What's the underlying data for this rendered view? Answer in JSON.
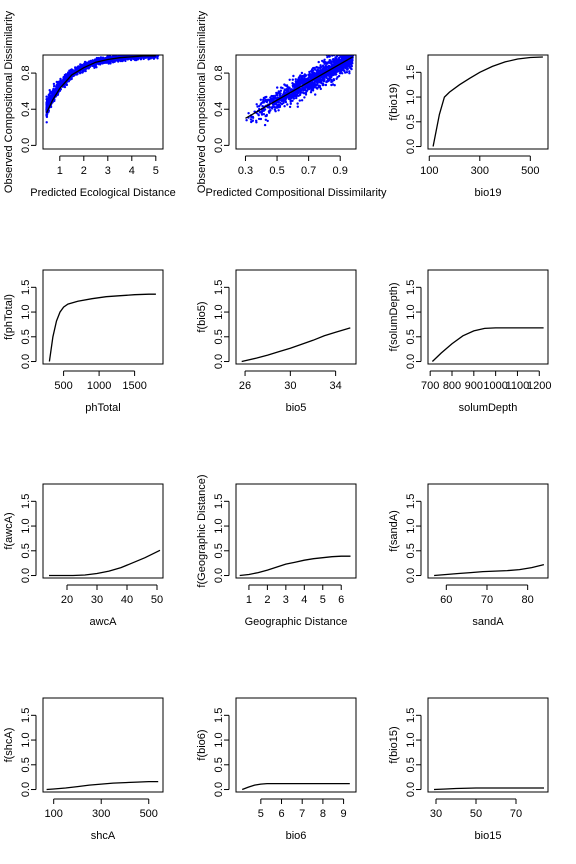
{
  "chart_data": [
    {
      "type": "scatter",
      "xlabel": "Predicted Ecological Distance",
      "ylabel": "Observed Compositional Dissimilarity",
      "xlim": [
        0.3,
        5.3
      ],
      "ylim": [
        -0.04,
        1.0
      ],
      "xticks": [
        1,
        2,
        3,
        4,
        5
      ],
      "xtick_labels": [
        "1",
        "2",
        "3",
        "4",
        "5"
      ],
      "yticks": [
        0.0,
        0.4,
        0.8
      ],
      "ytick_labels": [
        "0.0",
        "0.4",
        "0.8"
      ],
      "point_color": "#0000ff",
      "scatter_model": "exp",
      "scatter_x_range": [
        0.45,
        5.1
      ],
      "scatter_noise": 0.055,
      "fit_line": {
        "x": [
          0.45,
          0.7,
          1.0,
          1.5,
          2.0,
          2.5,
          3.0,
          3.5,
          4.0,
          4.5,
          5.0
        ],
        "y": [
          0.36,
          0.5,
          0.63,
          0.78,
          0.86,
          0.92,
          0.95,
          0.97,
          0.98,
          0.99,
          0.99
        ]
      }
    },
    {
      "type": "scatter",
      "xlabel": "Predicted Compositional Dissimilarity",
      "ylabel": "Observed Compositional Dissimilarity",
      "xlim": [
        0.24,
        1.0
      ],
      "ylim": [
        -0.04,
        1.0
      ],
      "xticks": [
        0.3,
        0.5,
        0.7,
        0.9
      ],
      "xtick_labels": [
        "0.3",
        "0.5",
        "0.7",
        "0.9"
      ],
      "yticks": [
        0.0,
        0.4,
        0.8
      ],
      "ytick_labels": [
        "0.0",
        "0.4",
        "0.8"
      ],
      "point_color": "#0000ff",
      "scatter_model": "linear",
      "scatter_x_range": [
        0.3,
        0.98
      ],
      "scatter_noise": 0.06,
      "fit_line": {
        "x": [
          0.3,
          0.98
        ],
        "y": [
          0.3,
          0.98
        ]
      }
    },
    {
      "type": "line",
      "xlabel": "bio19",
      "ylabel": "f(bio19)",
      "xlim": [
        95,
        570
      ],
      "ylim": [
        -0.05,
        1.85
      ],
      "xticks": [
        100,
        300,
        500
      ],
      "xtick_labels": [
        "100",
        "300",
        "500"
      ],
      "yticks": [
        0.0,
        0.5,
        1.0,
        1.5
      ],
      "ytick_labels": [
        "0.0",
        "0.5",
        "1.0",
        "1.5"
      ],
      "x": [
        115,
        140,
        160,
        180,
        220,
        260,
        300,
        350,
        400,
        450,
        500,
        550
      ],
      "y": [
        0.0,
        0.65,
        1.0,
        1.1,
        1.25,
        1.38,
        1.5,
        1.62,
        1.71,
        1.77,
        1.8,
        1.81
      ]
    },
    {
      "type": "line",
      "xlabel": "phTotal",
      "ylabel": "f(phTotal)",
      "xlim": [
        210,
        1900
      ],
      "ylim": [
        -0.05,
        1.85
      ],
      "xticks": [
        500,
        1000,
        1500
      ],
      "xtick_labels": [
        "500",
        "1000",
        "1500"
      ],
      "yticks": [
        0.0,
        0.5,
        1.0,
        1.5
      ],
      "ytick_labels": [
        "0.0",
        "0.5",
        "1.0",
        "1.5"
      ],
      "x": [
        300,
        350,
        400,
        450,
        500,
        560,
        700,
        900,
        1100,
        1300,
        1500,
        1700,
        1800
      ],
      "y": [
        0.0,
        0.5,
        0.82,
        1.0,
        1.1,
        1.16,
        1.22,
        1.27,
        1.31,
        1.33,
        1.35,
        1.36,
        1.36
      ]
    },
    {
      "type": "line",
      "xlabel": "bio5",
      "ylabel": "f(bio5)",
      "xlim": [
        25.2,
        35.8
      ],
      "ylim": [
        -0.05,
        1.85
      ],
      "xticks": [
        26,
        30,
        34
      ],
      "xtick_labels": [
        "26",
        "30",
        "34"
      ],
      "yticks": [
        0.0,
        0.5,
        1.0,
        1.5
      ],
      "ytick_labels": [
        "0.0",
        "0.5",
        "1.0",
        "1.5"
      ],
      "x": [
        25.7,
        27,
        28,
        29,
        30,
        31,
        32,
        33,
        34,
        35.3
      ],
      "y": [
        0.0,
        0.07,
        0.13,
        0.2,
        0.27,
        0.35,
        0.43,
        0.52,
        0.59,
        0.68
      ]
    },
    {
      "type": "line",
      "xlabel": "solumDepth",
      "ylabel": "f(solumDepth)",
      "xlim": [
        690,
        1240
      ],
      "ylim": [
        -0.05,
        1.85
      ],
      "xticks": [
        700,
        800,
        900,
        1000,
        1100,
        1200
      ],
      "xtick_labels": [
        "700",
        "800",
        "900",
        "1000",
        "1100",
        "1200"
      ],
      "yticks": [
        0.0,
        0.5,
        1.0,
        1.5
      ],
      "ytick_labels": [
        "0.0",
        "0.5",
        "1.0",
        "1.5"
      ],
      "x": [
        710,
        750,
        800,
        850,
        900,
        950,
        1000,
        1050,
        1100,
        1150,
        1220
      ],
      "y": [
        0.0,
        0.17,
        0.36,
        0.52,
        0.62,
        0.67,
        0.68,
        0.68,
        0.68,
        0.68,
        0.68
      ]
    },
    {
      "type": "line",
      "xlabel": "awcA",
      "ylabel": "f(awcA)",
      "xlim": [
        12,
        52
      ],
      "ylim": [
        -0.05,
        1.85
      ],
      "xticks": [
        20,
        30,
        40,
        50
      ],
      "xtick_labels": [
        "20",
        "30",
        "40",
        "50"
      ],
      "yticks": [
        0.0,
        0.5,
        1.0,
        1.5
      ],
      "ytick_labels": [
        "0.0",
        "0.5",
        "1.0",
        "1.5"
      ],
      "x": [
        14,
        18,
        22,
        26,
        30,
        34,
        38,
        42,
        46,
        51
      ],
      "y": [
        0.0,
        0.0,
        0.0,
        0.01,
        0.04,
        0.09,
        0.16,
        0.26,
        0.36,
        0.51
      ]
    },
    {
      "type": "line",
      "xlabel": "Geographic Distance",
      "ylabel": "f(Geographic Distance)",
      "xlim": [
        0.3,
        6.8
      ],
      "ylim": [
        -0.05,
        1.85
      ],
      "xticks": [
        1,
        2,
        3,
        4,
        5,
        6
      ],
      "xtick_labels": [
        "1",
        "2",
        "3",
        "4",
        "5",
        "6"
      ],
      "yticks": [
        0.0,
        0.5,
        1.0,
        1.5
      ],
      "ytick_labels": [
        "0.0",
        "0.5",
        "1.0",
        "1.5"
      ],
      "x": [
        0.5,
        1,
        1.5,
        2,
        2.5,
        3,
        3.5,
        4,
        4.5,
        5,
        5.5,
        6,
        6.5
      ],
      "y": [
        0.0,
        0.02,
        0.06,
        0.11,
        0.17,
        0.23,
        0.27,
        0.31,
        0.34,
        0.36,
        0.38,
        0.39,
        0.39
      ]
    },
    {
      "type": "line",
      "xlabel": "sandA",
      "ylabel": "f(sandA)",
      "xlim": [
        55.5,
        85
      ],
      "ylim": [
        -0.05,
        1.85
      ],
      "xticks": [
        60,
        70,
        80
      ],
      "xtick_labels": [
        "60",
        "70",
        "80"
      ],
      "yticks": [
        0.0,
        0.5,
        1.0,
        1.5
      ],
      "ytick_labels": [
        "0.0",
        "0.5",
        "1.0",
        "1.5"
      ],
      "x": [
        57,
        60,
        63,
        66,
        69,
        72,
        75,
        78,
        81,
        84
      ],
      "y": [
        0.0,
        0.02,
        0.04,
        0.06,
        0.08,
        0.09,
        0.1,
        0.12,
        0.16,
        0.22
      ]
    },
    {
      "type": "line",
      "xlabel": "shcA",
      "ylabel": "f(shcA)",
      "xlim": [
        55,
        560
      ],
      "ylim": [
        -0.05,
        1.85
      ],
      "xticks": [
        100,
        300,
        500
      ],
      "xtick_labels": [
        "100",
        "300",
        "500"
      ],
      "yticks": [
        0.0,
        0.5,
        1.0,
        1.5
      ],
      "ytick_labels": [
        "0.0",
        "0.5",
        "1.0",
        "1.5"
      ],
      "x": [
        70,
        100,
        150,
        200,
        250,
        300,
        350,
        400,
        450,
        500,
        540
      ],
      "y": [
        0.0,
        0.01,
        0.03,
        0.06,
        0.09,
        0.11,
        0.13,
        0.14,
        0.15,
        0.16,
        0.16
      ]
    },
    {
      "type": "line",
      "xlabel": "bio6",
      "ylabel": "f(bio6)",
      "xlim": [
        3.8,
        9.6
      ],
      "ylim": [
        -0.05,
        1.85
      ],
      "xticks": [
        5,
        6,
        7,
        8,
        9
      ],
      "xtick_labels": [
        "5",
        "6",
        "7",
        "8",
        "9"
      ],
      "yticks": [
        0.0,
        0.5,
        1.0,
        1.5
      ],
      "ytick_labels": [
        "0.0",
        "0.5",
        "1.0",
        "1.5"
      ],
      "x": [
        4.1,
        4.4,
        4.7,
        5.0,
        5.3,
        5.6,
        6.5,
        7.5,
        8.5,
        9.3
      ],
      "y": [
        0.0,
        0.05,
        0.09,
        0.11,
        0.12,
        0.12,
        0.12,
        0.12,
        0.12,
        0.12
      ]
    },
    {
      "type": "line",
      "xlabel": "bio15",
      "ylabel": "f(bio15)",
      "xlim": [
        26,
        86
      ],
      "ylim": [
        -0.05,
        1.85
      ],
      "xticks": [
        30,
        50,
        70
      ],
      "xtick_labels": [
        "30",
        "50",
        "70"
      ],
      "yticks": [
        0.0,
        0.5,
        1.0,
        1.5
      ],
      "ytick_labels": [
        "0.0",
        "0.5",
        "1.0",
        "1.5"
      ],
      "x": [
        29,
        35,
        40,
        50,
        60,
        70,
        80,
        84
      ],
      "y": [
        0.0,
        0.01,
        0.02,
        0.03,
        0.03,
        0.03,
        0.03,
        0.03
      ]
    }
  ]
}
